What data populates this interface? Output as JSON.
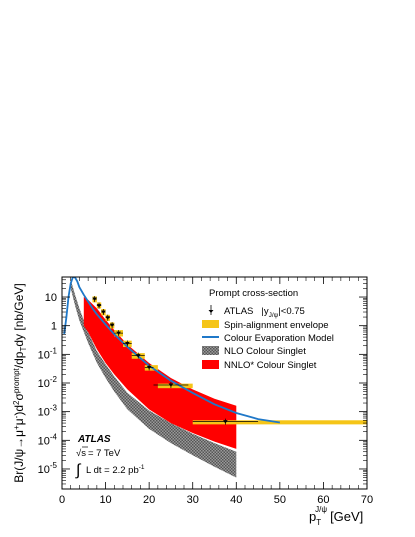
{
  "chart_data": {
    "type": "scatter",
    "title": "Prompt cross-section",
    "xlabel_main": "p",
    "xlabel_sub": "T",
    "xlabel_sup": "J/ψ",
    "xlabel_unit": "[GeV]",
    "ylabel": "Br(J/ψ→μ⁺μ⁻)d²σ^prompt/dp_T dy [nb/GeV]",
    "ylabel_parts": {
      "a": "Br(J/ψ→μ",
      "a_sup1": "+",
      "b": "μ",
      "b_sup": "-",
      "c": ")d",
      "c_sup": "2",
      "d": "σ",
      "d_sup": "prompt",
      "e": "/dp",
      "e_sub": "T",
      "f": "dy [nb/GeV]"
    },
    "xlim": [
      0,
      70
    ],
    "ylim": [
      2e-06,
      50
    ],
    "yscale": "log",
    "x_ticks": [
      "0",
      "10",
      "20",
      "30",
      "40",
      "50",
      "60",
      "70"
    ],
    "y_ticks": [
      {
        "base": "10",
        "exp": "-5",
        "value": 1e-05
      },
      {
        "base": "10",
        "exp": "-4",
        "value": 0.0001
      },
      {
        "base": "10",
        "exp": "-3",
        "value": 0.001
      },
      {
        "base": "10",
        "exp": "-2",
        "value": 0.01
      },
      {
        "base": "10",
        "exp": "-1",
        "value": 0.1
      },
      {
        "base": "1",
        "exp": "",
        "value": 1
      },
      {
        "base": "10",
        "exp": "",
        "value": 10
      }
    ],
    "annotations": {
      "experiment": "ATLAS",
      "energy_sqrt": "s",
      "energy_value": "= 7 TeV",
      "lumi_symbol": "∫",
      "lumi_text": "L dt = 2.2 pb",
      "lumi_sup": "-1"
    },
    "legend": {
      "placement": "top-right",
      "atlas_label": "ATLAS",
      "atlas_rapidity": "|y",
      "atlas_rapidity_sub": "J/ψ",
      "atlas_rapidity_cut": "|<0.75",
      "spin": "Spin-alignment envelope",
      "cem": "Colour Evaporation Model",
      "nlo": "NLO Colour Singlet",
      "nnlo": "NNLO* Colour Singlet"
    },
    "colors": {
      "spin": "#f5c518",
      "cem": "#1f78c8",
      "nlo": "#888888",
      "nnlo": "#ff0000",
      "data": "#000000"
    },
    "series": [
      {
        "name": "ATLAS |yJ/ψ|<0.75",
        "kind": "points",
        "points": [
          {
            "x": 7.5,
            "y": 8.5,
            "xerr": 0.5
          },
          {
            "x": 8.5,
            "y": 5.0,
            "xerr": 0.5
          },
          {
            "x": 9.5,
            "y": 3.0,
            "xerr": 0.5
          },
          {
            "x": 10.5,
            "y": 1.9,
            "xerr": 0.5
          },
          {
            "x": 11.5,
            "y": 1.05,
            "xerr": 0.5
          },
          {
            "x": 13.0,
            "y": 0.55,
            "xerr": 1.0
          },
          {
            "x": 15.0,
            "y": 0.24,
            "xerr": 1.0
          },
          {
            "x": 17.5,
            "y": 0.09,
            "xerr": 1.5
          },
          {
            "x": 20.0,
            "y": 0.035,
            "xerr": 1.0
          },
          {
            "x": 25.0,
            "y": 0.0085,
            "xerr": 4.0
          },
          {
            "x": 37.5,
            "y": 0.00045,
            "xerr": 7.5
          }
        ]
      },
      {
        "name": "Spin-alignment envelope",
        "kind": "boxes",
        "boxes": [
          {
            "x0": 7,
            "x1": 8,
            "y0": 6.5,
            "y1": 10.5
          },
          {
            "x0": 8,
            "x1": 9,
            "y0": 4.0,
            "y1": 6.5
          },
          {
            "x0": 9,
            "x1": 10,
            "y0": 2.3,
            "y1": 3.8
          },
          {
            "x0": 10,
            "x1": 11,
            "y0": 1.45,
            "y1": 2.4
          },
          {
            "x0": 11,
            "x1": 12,
            "y0": 0.8,
            "y1": 1.3
          },
          {
            "x0": 12,
            "x1": 14,
            "y0": 0.42,
            "y1": 0.7
          },
          {
            "x0": 14,
            "x1": 16,
            "y0": 0.18,
            "y1": 0.3
          },
          {
            "x0": 16,
            "x1": 19,
            "y0": 0.07,
            "y1": 0.11
          },
          {
            "x0": 19,
            "x1": 22,
            "y0": 0.027,
            "y1": 0.042
          },
          {
            "x0": 22,
            "x1": 30,
            "y0": 0.0066,
            "y1": 0.0095
          },
          {
            "x0": 30,
            "x1": 70,
            "y0": 0.00036,
            "y1": 0.0005
          }
        ]
      },
      {
        "name": "Colour Evaporation Model",
        "kind": "line",
        "x": [
          0.5,
          1,
          1.5,
          2,
          2.5,
          3,
          3.5,
          4,
          5,
          6,
          7,
          8,
          10,
          12,
          15,
          20,
          25,
          30,
          35,
          40,
          45,
          50
        ],
        "y": [
          0.5,
          2,
          10,
          30,
          50,
          48,
          35,
          22,
          12,
          7,
          4,
          2.5,
          1.1,
          0.5,
          0.18,
          0.04,
          0.012,
          0.0045,
          0.0018,
          0.0009,
          0.00055,
          0.00042
        ]
      },
      {
        "name": "NLO Colour Singlet",
        "kind": "band",
        "x": [
          2,
          3,
          4,
          6,
          8,
          10,
          12,
          15,
          20,
          25,
          30,
          35,
          40
        ],
        "lower": [
          20,
          5,
          1.5,
          0.25,
          0.05,
          0.015,
          0.005,
          0.0012,
          0.00025,
          8e-05,
          3e-05,
          1.2e-05,
          5e-06
        ],
        "upper": [
          40,
          12,
          4,
          0.6,
          0.13,
          0.045,
          0.017,
          0.0045,
          0.0011,
          0.0004,
          0.00017,
          8e-05,
          4e-05
        ]
      },
      {
        "name": "NNLO* Colour Singlet",
        "kind": "band",
        "x": [
          5,
          6,
          8,
          10,
          12,
          15,
          20,
          25,
          30,
          35,
          40
        ],
        "lower": [
          1.0,
          0.6,
          0.15,
          0.05,
          0.02,
          0.006,
          0.0012,
          0.0004,
          0.00018,
          9e-05,
          5e-05
        ],
        "upper": [
          10,
          8,
          4,
          1.6,
          0.7,
          0.22,
          0.05,
          0.015,
          0.006,
          0.0028,
          0.0016
        ]
      }
    ]
  }
}
